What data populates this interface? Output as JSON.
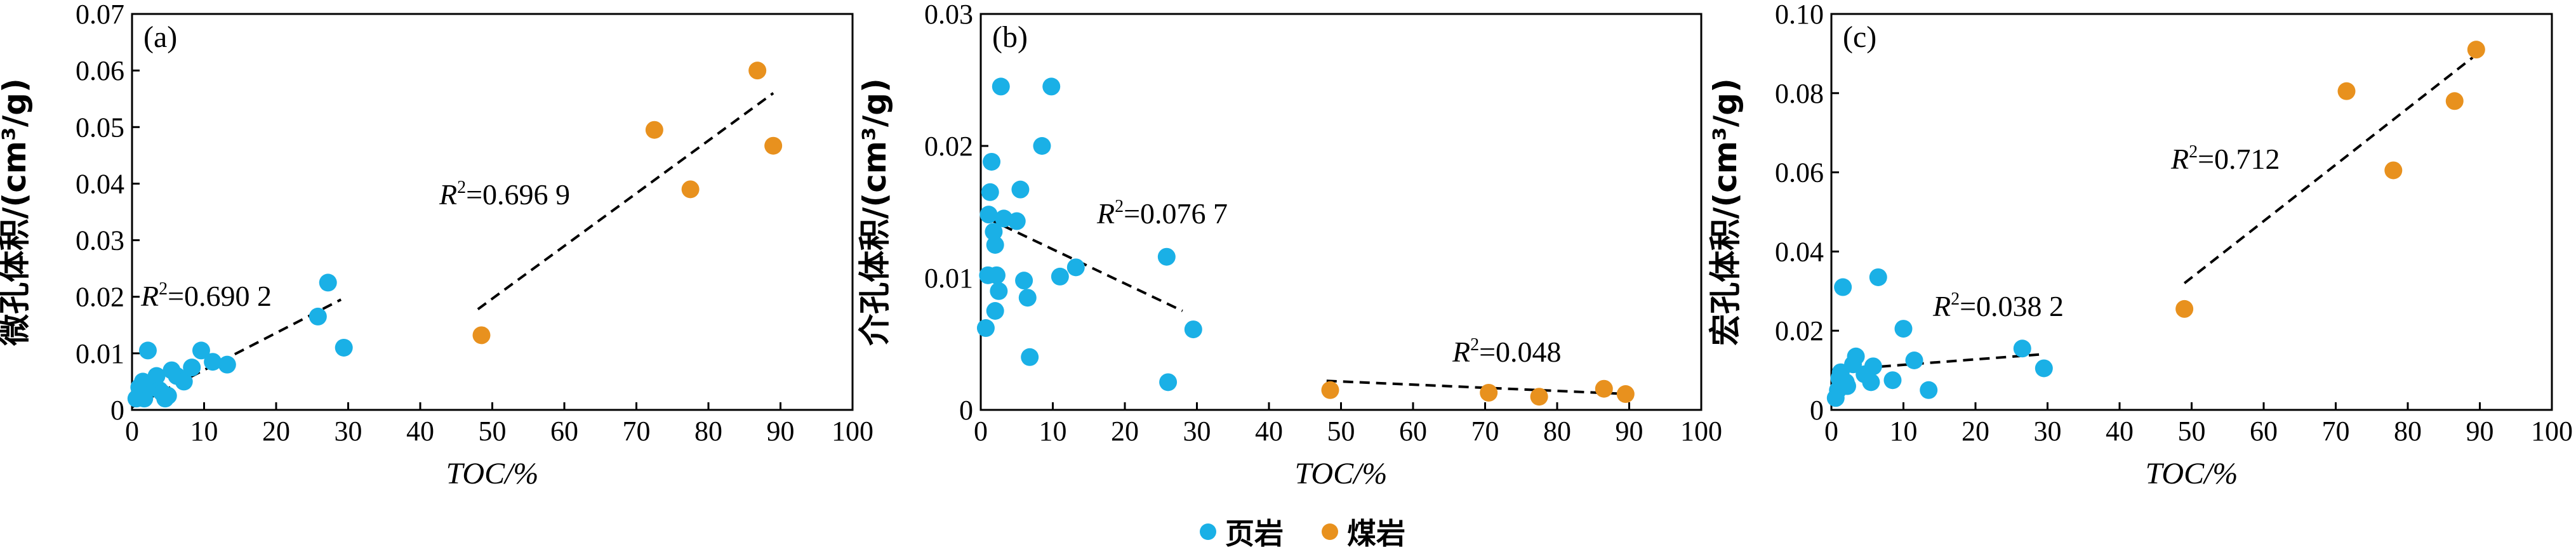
{
  "colors": {
    "shale": "#1ab0e6",
    "coal": "#e8911e"
  },
  "legend": {
    "shale": "页岩",
    "coal": "煤岩"
  },
  "chart_data": [
    {
      "type": "scatter",
      "panel": "(a)",
      "ylabel": "微孔体积/(cm³/g)",
      "xlabel": "TOC/%",
      "xlim": [
        0,
        100
      ],
      "ylim": [
        0,
        0.07
      ],
      "xticks": [
        "0",
        "10",
        "20",
        "30",
        "40",
        "50",
        "60",
        "70",
        "80",
        "90",
        "100"
      ],
      "yticks": [
        "0",
        "0.01",
        "0.02",
        "0.03",
        "0.04",
        "0.05",
        "0.06",
        "0.07"
      ],
      "xtick_values": [
        0,
        10,
        20,
        30,
        40,
        50,
        60,
        70,
        80,
        90,
        100
      ],
      "ytick_values": [
        0,
        0.01,
        0.02,
        0.03,
        0.04,
        0.05,
        0.06,
        0.07
      ],
      "series": [
        {
          "name": "页岩",
          "color": "#1ab0e6",
          "x": [
            0.6,
            1.0,
            1.3,
            1.5,
            1.7,
            2.0,
            2.2,
            2.5,
            3.0,
            3.4,
            3.8,
            4.2,
            4.6,
            5.0,
            5.5,
            6.2,
            7.2,
            8.3,
            9.6,
            11.2,
            13.2,
            25.8,
            27.2,
            29.4
          ],
          "y": [
            0.002,
            0.004,
            0.003,
            0.005,
            0.002,
            0.0045,
            0.0105,
            0.004,
            0.005,
            0.006,
            0.0035,
            0.003,
            0.002,
            0.0025,
            0.007,
            0.006,
            0.005,
            0.0075,
            0.0105,
            0.0085,
            0.008,
            0.0165,
            0.0225,
            0.011
          ]
        },
        {
          "name": "煤岩",
          "color": "#e8911e",
          "x": [
            48.5,
            72.5,
            77.5,
            86.8,
            89.0
          ],
          "y": [
            0.0132,
            0.0495,
            0.039,
            0.06,
            0.0467
          ]
        }
      ],
      "fit_lines": [
        {
          "r2_label": "=0.690 2",
          "x": [
            0,
            29
          ],
          "y": [
            0.0005,
            0.0195
          ]
        },
        {
          "r2_label": "=0.696 9",
          "x": [
            48,
            89
          ],
          "y": [
            0.0178,
            0.056
          ]
        }
      ]
    },
    {
      "type": "scatter",
      "panel": "(b)",
      "ylabel": "介孔体积/(cm³/g)",
      "xlabel": "TOC/%",
      "xlim": [
        0,
        100
      ],
      "ylim": [
        0,
        0.03
      ],
      "xticks": [
        "0",
        "10",
        "20",
        "30",
        "40",
        "50",
        "60",
        "70",
        "80",
        "90",
        "100"
      ],
      "yticks": [
        "0",
        "0.01",
        "0.02",
        "0.03"
      ],
      "xtick_values": [
        0,
        10,
        20,
        30,
        40,
        50,
        60,
        70,
        80,
        90,
        100
      ],
      "ytick_values": [
        0,
        0.01,
        0.02,
        0.03
      ],
      "series": [
        {
          "name": "页岩",
          "color": "#1ab0e6",
          "x": [
            0.7,
            1.0,
            1.1,
            1.3,
            1.5,
            1.8,
            2.0,
            2.0,
            2.2,
            2.5,
            2.8,
            3.2,
            5.0,
            5.5,
            6.0,
            6.5,
            6.8,
            8.5,
            9.8,
            11.0,
            13.2,
            25.8,
            26.0,
            29.5
          ],
          "y": [
            0.0062,
            0.0102,
            0.0148,
            0.0165,
            0.0188,
            0.0135,
            0.0075,
            0.0125,
            0.0102,
            0.009,
            0.0245,
            0.0145,
            0.0143,
            0.0167,
            0.0098,
            0.0085,
            0.004,
            0.02,
            0.0245,
            0.0101,
            0.0108,
            0.0116,
            0.0021,
            0.0061
          ]
        },
        {
          "name": "煤岩",
          "color": "#e8911e",
          "x": [
            48.5,
            70.5,
            77.5,
            86.5,
            89.5
          ],
          "y": [
            0.0015,
            0.0013,
            0.001,
            0.0016,
            0.0012
          ]
        }
      ],
      "fit_lines": [
        {
          "r2_label": "=0.076 7",
          "x": [
            1,
            28
          ],
          "y": [
            0.0145,
            0.0075
          ]
        },
        {
          "r2_label": "=0.048",
          "x": [
            48,
            90
          ],
          "y": [
            0.0022,
            0.0012
          ]
        }
      ]
    },
    {
      "type": "scatter",
      "panel": "(c)",
      "ylabel": "宏孔体积/(cm³/g)",
      "xlabel": "TOC/%",
      "xlim": [
        0,
        100
      ],
      "ylim": [
        0,
        0.1
      ],
      "xticks": [
        "0",
        "10",
        "20",
        "30",
        "40",
        "50",
        "60",
        "70",
        "80",
        "90",
        "100"
      ],
      "yticks": [
        "0",
        "0.02",
        "0.04",
        "0.06",
        "0.08",
        "0.10"
      ],
      "xtick_values": [
        0,
        10,
        20,
        30,
        40,
        50,
        60,
        70,
        80,
        90,
        100
      ],
      "ytick_values": [
        0,
        0.02,
        0.04,
        0.06,
        0.08,
        0.1
      ],
      "series": [
        {
          "name": "页岩",
          "color": "#1ab0e6",
          "x": [
            0.6,
            0.9,
            1.1,
            1.3,
            1.6,
            2.0,
            2.2,
            3.0,
            3.4,
            4.6,
            5.5,
            5.8,
            6.5,
            8.5,
            10.0,
            11.5,
            13.5,
            26.5,
            29.5
          ],
          "y": [
            0.003,
            0.005,
            0.008,
            0.0095,
            0.031,
            0.007,
            0.006,
            0.0115,
            0.0135,
            0.009,
            0.007,
            0.011,
            0.0335,
            0.0075,
            0.0205,
            0.0125,
            0.005,
            0.0155,
            0.0105
          ]
        },
        {
          "name": "煤岩",
          "color": "#e8911e",
          "x": [
            49.0,
            71.5,
            78.0,
            86.5,
            89.5
          ],
          "y": [
            0.0255,
            0.0805,
            0.0605,
            0.078,
            0.091
          ]
        }
      ],
      "fit_lines": [
        {
          "r2_label": "=0.038 2",
          "x": [
            0,
            29
          ],
          "y": [
            0.01,
            0.014
          ]
        },
        {
          "r2_label": "=0.712",
          "x": [
            49,
            89
          ],
          "y": [
            0.032,
            0.089
          ]
        }
      ]
    }
  ]
}
